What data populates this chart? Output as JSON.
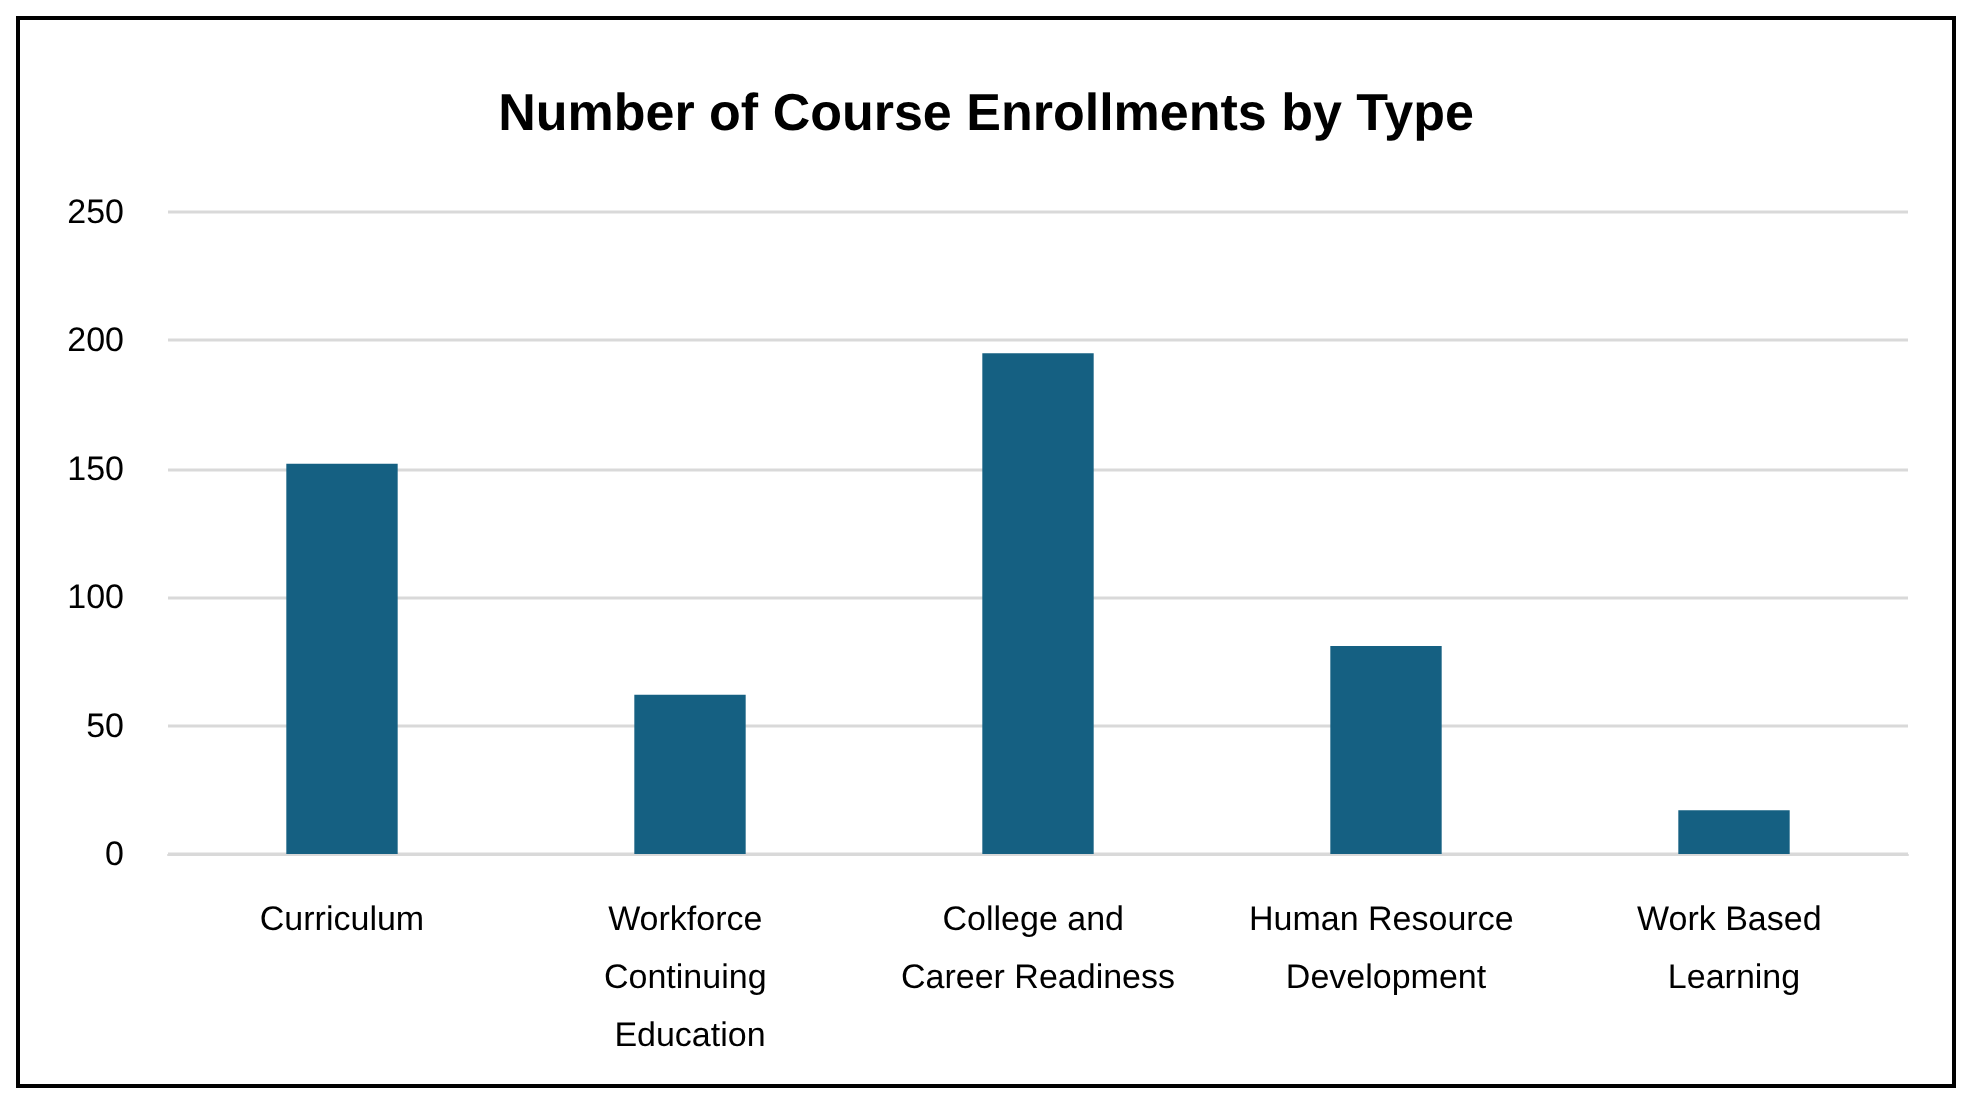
{
  "chart_data": {
    "type": "bar",
    "title": "Number of Course Enrollments by Type",
    "categories": [
      "Curriculum",
      "Workforce Continuing Education",
      "College and Career Readiness",
      "Human Resource Development",
      "Work Based Learning"
    ],
    "values": [
      152,
      62,
      195,
      81,
      17
    ],
    "color": "#156082",
    "ylim": [
      0,
      250
    ],
    "yticks": [
      0,
      50,
      100,
      150,
      200,
      250
    ],
    "grid": "y"
  }
}
